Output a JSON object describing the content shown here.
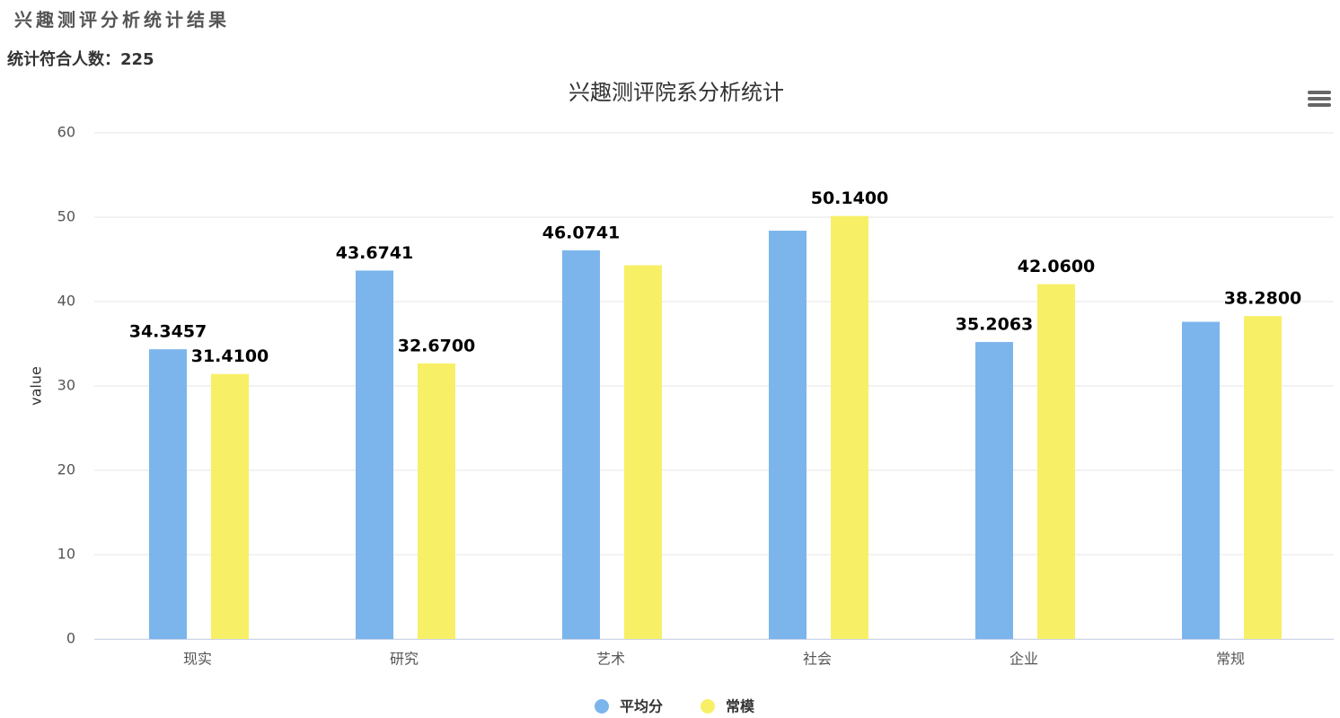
{
  "header": {
    "title": "兴趣测评分析统计结果",
    "count_label": "统计符合人数：",
    "count": 225
  },
  "chart_data": {
    "type": "bar",
    "title": "兴趣测评院系分析统计",
    "y_label": "value",
    "categories": [
      "现实",
      "研究",
      "艺术",
      "社会",
      "企业",
      "常规"
    ],
    "series": [
      {
        "name": "平均分",
        "color": "#7cb5ec",
        "values": [
          34.3457,
          43.6741,
          46.0741,
          48.4,
          35.2063,
          37.6
        ],
        "value_labels": [
          "34.3457",
          "43.6741",
          "46.0741",
          null,
          "35.2063",
          null
        ]
      },
      {
        "name": "常模",
        "color": "#f7f066",
        "values": [
          31.41,
          32.67,
          44.3,
          50.14,
          42.06,
          38.28
        ],
        "value_labels": [
          "31.4100",
          "32.6700",
          null,
          "50.1400",
          "42.0600",
          "38.2800"
        ]
      }
    ],
    "ylim": [
      0,
      60
    ],
    "yticks": [
      0,
      10,
      20,
      30,
      40,
      50,
      60
    ],
    "grid": true,
    "legend": "bottom"
  }
}
